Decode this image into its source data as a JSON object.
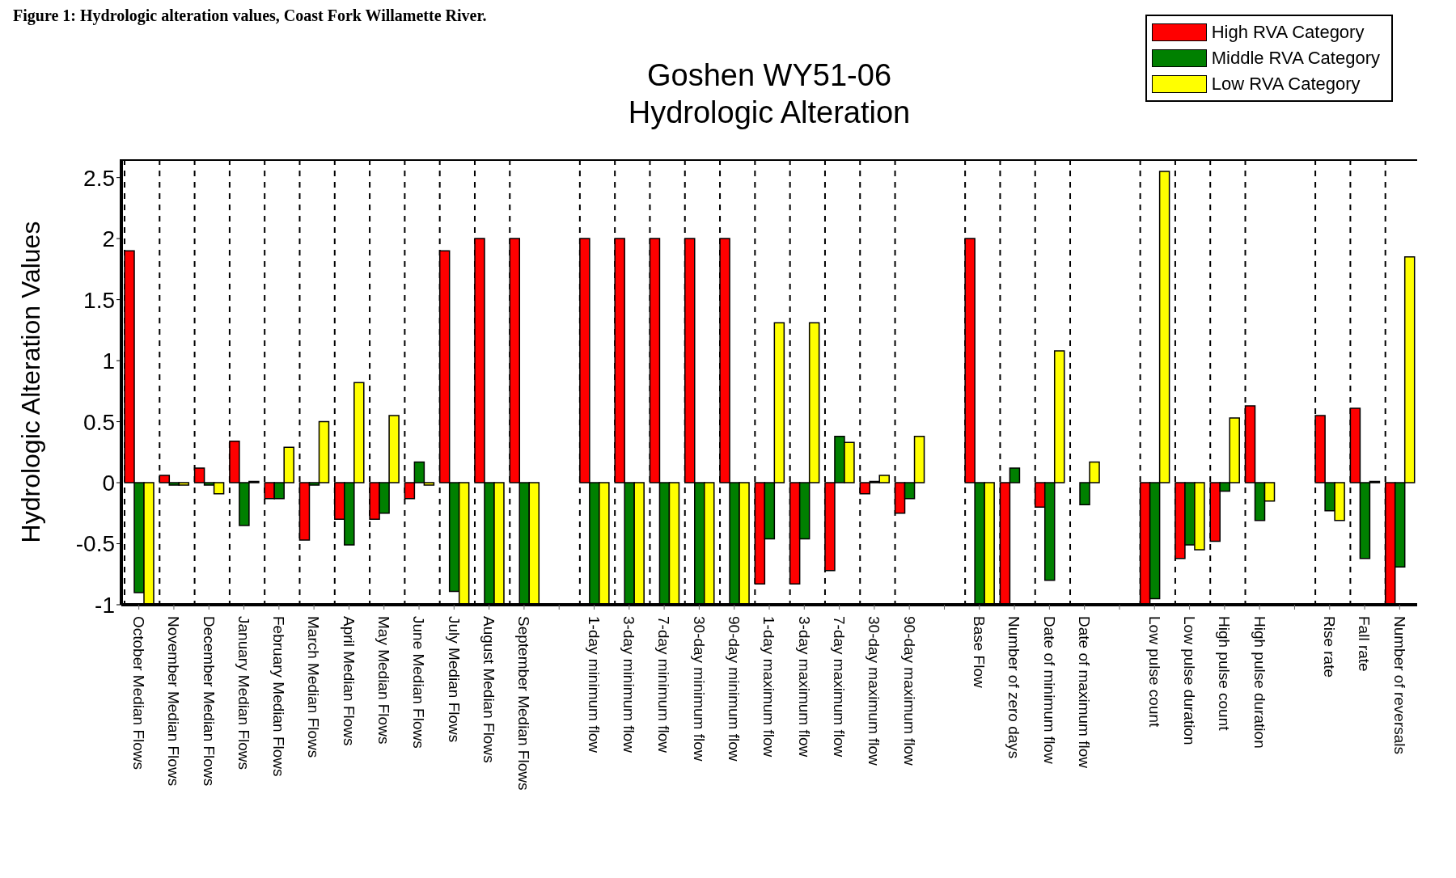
{
  "chart_data": {
    "type": "bar",
    "title": "Goshen WY51-06\nHydrologic Alteration",
    "ylabel": "Hydrologic Alteration Values",
    "annotations": [
      "Figure 1: Hydrologic alteration values, Coast Fork Willamette River."
    ],
    "categories": [
      "October Median Flows",
      "November Median Flows",
      "December Median Flows",
      "January Median Flows",
      "February Median Flows",
      "March Median Flows",
      "April Median Flows",
      "May Median Flows",
      "June Median Flows",
      "July Median Flows",
      "August Median Flows",
      "September Median Flows",
      null,
      "1-day minimum flow",
      "3-day minimum flow",
      "7-day minimum flow",
      "30-day minimum flow",
      "90-day minimum flow",
      "1-day maximum flow",
      "3-day maximum flow",
      "7-day maximum flow",
      "30-day maximum flow",
      "90-day maximum flow",
      null,
      "Base Flow",
      "Number of zero days",
      "Date of minimum flow",
      "Date of maximum flow",
      null,
      "Low pulse count",
      "Low pulse duration",
      "High pulse count",
      "High pulse duration",
      null,
      "Rise rate",
      "Fall rate",
      "Number of reversals"
    ],
    "series": [
      {
        "name": "High RVA Category",
        "color": "#ff0000",
        "values": [
          1.9,
          0.06,
          0.12,
          0.34,
          -0.13,
          -0.47,
          -0.3,
          -0.3,
          -0.13,
          1.9,
          2,
          2,
          null,
          2,
          2,
          2,
          2,
          2,
          -0.83,
          -0.83,
          -0.72,
          -0.09,
          -0.25,
          null,
          2,
          -1,
          -0.2,
          0,
          null,
          -1,
          -0.62,
          -0.48,
          0.63,
          null,
          0.55,
          0.61,
          -1
        ]
      },
      {
        "name": "Middle RVA Category",
        "color": "#008000",
        "values": [
          -0.9,
          -0.02,
          -0.02,
          -0.35,
          -0.13,
          -0.02,
          -0.51,
          -0.25,
          0.17,
          -0.89,
          -1,
          -1,
          null,
          -1,
          -1,
          -1,
          -1,
          -1,
          -0.46,
          -0.46,
          0.38,
          0.01,
          -0.13,
          null,
          -1,
          0.12,
          -0.8,
          -0.18,
          null,
          -0.95,
          -0.51,
          -0.07,
          -0.31,
          null,
          -0.23,
          -0.62,
          -0.69
        ]
      },
      {
        "name": "Low RVA Category",
        "color": "#ffff00",
        "values": [
          -1,
          -0.02,
          -0.09,
          0.01,
          0.29,
          0.5,
          0.82,
          0.55,
          -0.02,
          -1,
          -1,
          -1,
          null,
          -1,
          -1,
          -1,
          -1,
          -1,
          1.31,
          1.31,
          0.33,
          0.06,
          0.38,
          null,
          -1,
          0,
          1.08,
          0.17,
          null,
          2.55,
          -0.55,
          0.53,
          -0.15,
          null,
          -0.31,
          0.01,
          1.85
        ]
      }
    ],
    "ylim": [
      -1,
      2.65
    ],
    "yticks": [
      -1,
      -0.5,
      0,
      0.5,
      1,
      1.5,
      2,
      2.5
    ],
    "grid": "x",
    "legend": "top right"
  }
}
